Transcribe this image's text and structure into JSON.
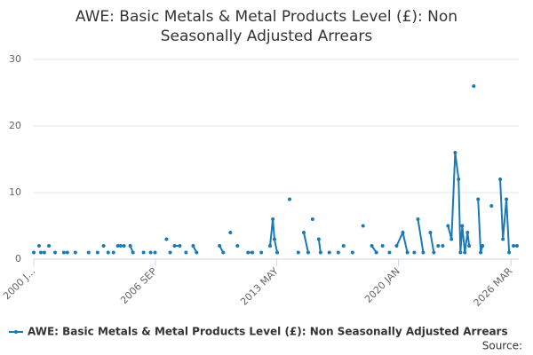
{
  "chart_data": {
    "type": "line",
    "title": "AWE: Basic Metals & Metal Products Level (£): Non Seasonally Adjusted Arrears",
    "series": [
      {
        "name": "AWE: Basic Metals & Metal Products Level (£): Non Seasonally Adjusted Arrears",
        "color": "#1a7ab5",
        "x": [
          2000,
          null,
          2000.29,
          null,
          2000.39,
          null,
          2000.58,
          null,
          2000.83,
          null,
          2001.17,
          null,
          2001.65,
          null,
          2001.84,
          null,
          2002.28,
          null,
          2003.01,
          null,
          2003.5,
          null,
          2003.83,
          null,
          2004.08,
          null,
          2004.37,
          null,
          2004.61,
          2004.76,
          2004.95,
          null,
          2005.29,
          2005.44,
          null,
          2006.02,
          null,
          2006.41,
          null,
          2006.65,
          null,
          2007.28,
          null,
          2007.48,
          null,
          2007.72,
          2008.01,
          null,
          2008.35,
          null,
          2008.74,
          2008.93,
          null,
          2010.19,
          2010.39,
          null,
          2010.78,
          null,
          2011.17,
          null,
          2011.75,
          2011.99,
          null,
          2012.48,
          null,
          2012.96,
          2013.11,
          2013.2,
          2013.35,
          null,
          2014.03,
          null,
          2014.51,
          null,
          2014.81,
          2015.05,
          null,
          2015.29,
          null,
          2015.63,
          2015.73,
          null,
          2016.21,
          null,
          2016.7,
          null,
          2016.99,
          null,
          2017.48,
          null,
          2018.06,
          null,
          2018.54,
          2018.79,
          null,
          2019.13,
          null,
          2019.51,
          null,
          2019.9,
          2020.24,
          2020.49,
          null,
          2020.87,
          null,
          2021.07,
          2021.36,
          null,
          2021.75,
          2021.94,
          null,
          2022.18,
          null,
          2022.43,
          null,
          2022.72,
          2022.91,
          2023.11,
          2023.3,
          2023.4,
          2023.5,
          2023.64,
          2023.79,
          2023.88,
          null,
          2024.13,
          null,
          2024.37,
          2024.51,
          2024.61,
          null,
          2025.1,
          null,
          2025.58,
          2025.73,
          2025.92,
          2026.07,
          null,
          2026.31,
          2026.5
        ],
        "values": [
          1,
          null,
          2,
          null,
          1,
          null,
          1,
          null,
          2,
          null,
          1,
          null,
          1,
          null,
          1,
          null,
          1,
          null,
          1,
          null,
          1,
          null,
          2,
          null,
          1,
          null,
          1,
          null,
          2,
          2,
          2,
          null,
          2,
          1,
          null,
          1,
          null,
          1,
          null,
          1,
          null,
          3,
          null,
          1,
          null,
          2,
          2,
          null,
          1,
          null,
          2,
          1,
          null,
          2,
          1,
          null,
          4,
          null,
          2,
          null,
          1,
          1,
          null,
          1,
          null,
          2,
          6,
          3,
          1,
          null,
          9,
          null,
          1,
          null,
          4,
          1,
          null,
          6,
          null,
          3,
          1,
          null,
          1,
          null,
          1,
          null,
          2,
          null,
          1,
          null,
          5,
          null,
          2,
          1,
          null,
          2,
          null,
          1,
          null,
          2,
          4,
          1,
          null,
          1,
          null,
          6,
          1,
          null,
          4,
          1,
          null,
          2,
          null,
          2,
          null,
          5,
          3,
          16,
          12,
          1,
          5,
          1,
          4,
          2,
          null,
          26,
          null,
          9,
          1,
          2,
          null,
          8,
          null,
          12,
          3,
          9,
          1,
          null,
          2,
          2
        ]
      }
    ],
    "xlim": [
      2000,
      2026.6
    ],
    "xticks": [
      {
        "value": 2000,
        "label": "2000 J..."
      },
      {
        "value": 2006.67,
        "label": "2006 SEP"
      },
      {
        "value": 2013.33,
        "label": "2013 MAY"
      },
      {
        "value": 2020,
        "label": "2020 JAN"
      },
      {
        "value": 2026.17,
        "label": "2026 MAR"
      }
    ],
    "ylim": [
      0,
      30
    ],
    "yticks": [
      0,
      10,
      20,
      30
    ],
    "grid": true,
    "source": "Source:"
  }
}
